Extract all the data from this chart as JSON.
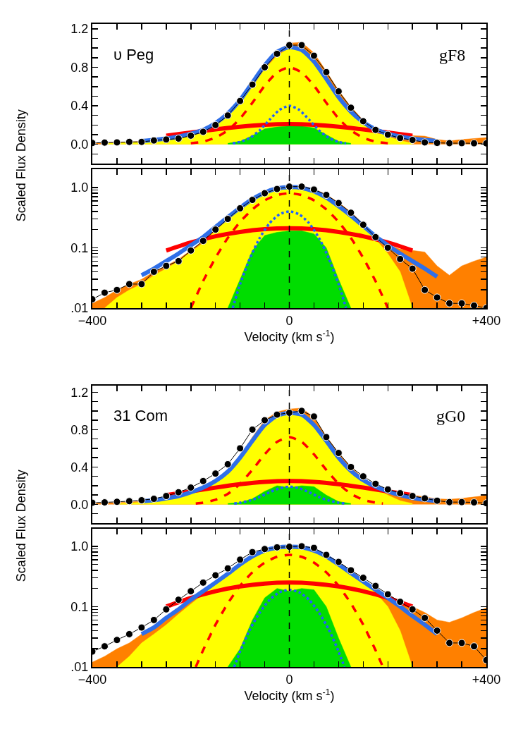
{
  "chart_data": [
    {
      "type": "line",
      "ylabel": "Scaled Flux Density",
      "annotations": [
        "υ Peg",
        "gF8"
      ],
      "tick_labels": "y",
      "xlim": [
        -400,
        400
      ],
      "xticks": [
        -400,
        {
          "value": -350,
          "label": null
        },
        {
          "value": -300,
          "label": null
        },
        {
          "value": -250,
          "label": null
        },
        {
          "value": -200,
          "label": null
        },
        {
          "value": -150,
          "label": null
        },
        {
          "value": -100,
          "label": null
        },
        {
          "value": -50,
          "label": null
        },
        0,
        {
          "value": 50,
          "label": null
        },
        {
          "value": 100,
          "label": null
        },
        {
          "value": 150,
          "label": null
        },
        {
          "value": 200,
          "label": null
        },
        {
          "value": 250,
          "label": null
        },
        {
          "value": 300,
          "label": null
        },
        {
          "value": 350,
          "label": null
        },
        400
      ],
      "ylim": [
        -0.2,
        1.25
      ],
      "yticks": [
        {
          "value": -0.2,
          "label": null
        },
        {
          "value": -0.1,
          "label": null
        },
        {
          "value": 0,
          "label": "0.0"
        },
        {
          "value": 0.1,
          "label": null
        },
        {
          "value": 0.2,
          "label": null
        },
        {
          "value": 0.3,
          "label": null
        },
        {
          "value": 0.4,
          "label": "0.4"
        },
        {
          "value": 0.5,
          "label": null
        },
        {
          "value": 0.6,
          "label": null
        },
        {
          "value": 0.7,
          "label": null
        },
        {
          "value": 0.8,
          "label": "0.8"
        },
        {
          "value": 0.9,
          "label": null
        },
        {
          "value": 1.0,
          "label": null
        },
        {
          "value": 1.1,
          "label": null
        },
        {
          "value": 1.2,
          "label": "1.2"
        }
      ],
      "ref_lines": [
        {
          "axis": "x",
          "value": 0,
          "color": "#000000",
          "line_style": "dashed"
        }
      ],
      "series": [
        {
          "type": "area",
          "color": "#ff8000",
          "x": [
            -400,
            -375,
            -350,
            -325,
            -300,
            -275,
            -250,
            -225,
            -200,
            -175,
            -150,
            -125,
            -100,
            -75,
            -50,
            -25,
            0,
            25,
            50,
            75,
            100,
            125,
            150,
            175,
            200,
            225,
            250,
            275,
            300,
            325,
            350,
            375,
            400
          ],
          "values": [
            0.012,
            0.015,
            0.02,
            0.025,
            0.03,
            0.04,
            0.05,
            0.065,
            0.09,
            0.13,
            0.2,
            0.31,
            0.46,
            0.64,
            0.83,
            0.97,
            1.05,
            1.06,
            0.95,
            0.76,
            0.56,
            0.39,
            0.25,
            0.16,
            0.11,
            0.095,
            0.09,
            0.085,
            0.05,
            0.035,
            0.05,
            0.06,
            0.07
          ]
        },
        {
          "type": "area",
          "color": "#ffff00",
          "x": [
            -375,
            -350,
            -325,
            -300,
            -275,
            -250,
            -225,
            -200,
            -175,
            -150,
            -125,
            -100,
            -75,
            -50,
            -25,
            0,
            25,
            50,
            75,
            100,
            125,
            150,
            175,
            200,
            225,
            250
          ],
          "values": [
            0.01,
            0.015,
            0.02,
            0.025,
            0.035,
            0.045,
            0.06,
            0.085,
            0.12,
            0.19,
            0.29,
            0.43,
            0.6,
            0.78,
            0.92,
            1.0,
            1.0,
            0.88,
            0.7,
            0.5,
            0.34,
            0.22,
            0.14,
            0.08,
            0.04,
            0.01
          ]
        },
        {
          "type": "area",
          "color": "#00dd00",
          "x": [
            -125,
            -100,
            -75,
            -50,
            -25,
            0,
            25,
            50,
            75,
            100,
            125
          ],
          "values": [
            0.01,
            0.03,
            0.09,
            0.16,
            0.18,
            0.19,
            0.19,
            0.17,
            0.1,
            0.03,
            0.01
          ]
        },
        {
          "type": "line",
          "color": "#ff0000",
          "x": [
            -250,
            -200,
            -150,
            -100,
            -50,
            0,
            50,
            100,
            150,
            200,
            250
          ],
          "values": [
            0.09,
            0.122,
            0.155,
            0.183,
            0.203,
            0.21,
            0.203,
            0.183,
            0.155,
            0.122,
            0.09
          ]
        },
        {
          "type": "line",
          "color": "#ff0000",
          "line_style": "dashed",
          "x": [
            -200,
            -175,
            -150,
            -125,
            -100,
            -75,
            -50,
            -25,
            0,
            25,
            50,
            75,
            100,
            125,
            150,
            175,
            200
          ],
          "values": [
            0.01,
            0.028,
            0.068,
            0.145,
            0.268,
            0.432,
            0.609,
            0.747,
            0.8,
            0.747,
            0.609,
            0.432,
            0.268,
            0.145,
            0.068,
            0.028,
            0.01
          ]
        },
        {
          "type": "line",
          "color": "#2060ff",
          "line_style": "dotted",
          "x": [
            -115,
            -100,
            -80,
            -60,
            -40,
            -20,
            0,
            20,
            40,
            60,
            80,
            100,
            115
          ],
          "values": [
            0.01,
            0.025,
            0.067,
            0.146,
            0.256,
            0.358,
            0.4,
            0.358,
            0.256,
            0.146,
            0.067,
            0.025,
            0.01
          ]
        },
        {
          "type": "line",
          "color": "#2f6fe8",
          "x": [
            -300,
            -275,
            -250,
            -225,
            -200,
            -175,
            -150,
            -125,
            -100,
            -75,
            -50,
            -25,
            0,
            25,
            50,
            75,
            100,
            125,
            150,
            175,
            200,
            225,
            250,
            275,
            300
          ],
          "values": [
            0.035,
            0.045,
            0.06,
            0.08,
            0.11,
            0.15,
            0.22,
            0.32,
            0.46,
            0.64,
            0.82,
            0.96,
            1.01,
            0.98,
            0.86,
            0.68,
            0.49,
            0.34,
            0.23,
            0.155,
            0.11,
            0.08,
            0.06,
            0.045,
            0.033
          ]
        },
        {
          "type": "line",
          "color": "#000000",
          "marker": "circle",
          "x": [
            -400,
            -375,
            -350,
            -325,
            -300,
            -275,
            -250,
            -225,
            -200,
            -175,
            -150,
            -125,
            -100,
            -75,
            -50,
            -25,
            0,
            25,
            50,
            75,
            100,
            125,
            150,
            175,
            200,
            225,
            250,
            275,
            300,
            325,
            350,
            375,
            400
          ],
          "values": [
            0.014,
            0.018,
            0.02,
            0.025,
            0.025,
            0.04,
            0.05,
            0.06,
            0.09,
            0.13,
            0.2,
            0.3,
            0.45,
            0.62,
            0.8,
            0.94,
            1.03,
            1.03,
            0.92,
            0.75,
            0.55,
            0.38,
            0.24,
            0.15,
            0.1,
            0.065,
            0.045,
            0.02,
            0.015,
            0.012,
            0.012,
            0.011,
            0.01
          ]
        }
      ]
    },
    {
      "type": "line",
      "xlabel": "Velocity (km s$^{-1}$)",
      "log": "y",
      "xlim": [
        -400,
        400
      ],
      "xticks": [
        {
          "value": -400,
          "label": "−400"
        },
        {
          "value": -350,
          "label": null
        },
        {
          "value": -300,
          "label": null
        },
        {
          "value": -250,
          "label": null
        },
        {
          "value": -200,
          "label": null
        },
        {
          "value": -150,
          "label": null
        },
        {
          "value": -100,
          "label": null
        },
        {
          "value": -50,
          "label": null
        },
        0,
        {
          "value": 50,
          "label": null
        },
        {
          "value": 100,
          "label": null
        },
        {
          "value": 150,
          "label": null
        },
        {
          "value": 200,
          "label": null
        },
        {
          "value": 250,
          "label": null
        },
        {
          "value": 300,
          "label": null
        },
        {
          "value": 350,
          "label": null
        },
        {
          "value": 400,
          "label": "+400"
        }
      ],
      "ylim": [
        0.01,
        2
      ],
      "yticks": [
        {
          "value": 0.01,
          "label": ".01"
        },
        {
          "value": 0.02,
          "label": null
        },
        {
          "value": 0.03,
          "label": null
        },
        {
          "value": 0.04,
          "label": null
        },
        {
          "value": 0.05,
          "label": null
        },
        {
          "value": 0.06,
          "label": null
        },
        {
          "value": 0.07,
          "label": null
        },
        {
          "value": 0.08,
          "label": null
        },
        {
          "value": 0.09,
          "label": null
        },
        {
          "value": 0.1,
          "label": "0.1"
        },
        {
          "value": 0.2,
          "label": null
        },
        {
          "value": 0.3,
          "label": null
        },
        {
          "value": 0.4,
          "label": null
        },
        {
          "value": 0.5,
          "label": null
        },
        {
          "value": 0.6,
          "label": null
        },
        {
          "value": 0.7,
          "label": null
        },
        {
          "value": 0.8,
          "label": null
        },
        {
          "value": 0.9,
          "label": null
        },
        {
          "value": 1.0,
          "label": "1.0"
        },
        {
          "value": 2,
          "label": null
        }
      ],
      "ref_lines": [
        {
          "axis": "x",
          "value": 0,
          "color": "#000000",
          "line_style": "dashed"
        }
      ],
      "series": [
        {
          "type": "area",
          "color": "#ff8000",
          "x": [
            -400,
            -375,
            -350,
            -325,
            -300,
            -275,
            -250,
            -225,
            -200,
            -175,
            -150,
            -125,
            -100,
            -75,
            -50,
            -25,
            0,
            25,
            50,
            75,
            100,
            125,
            150,
            175,
            200,
            225,
            250,
            275,
            300,
            325,
            350,
            375,
            400
          ],
          "values": [
            0.012,
            0.015,
            0.02,
            0.025,
            0.03,
            0.04,
            0.05,
            0.065,
            0.09,
            0.13,
            0.2,
            0.31,
            0.46,
            0.64,
            0.83,
            0.97,
            1.05,
            1.06,
            0.95,
            0.76,
            0.56,
            0.39,
            0.25,
            0.16,
            0.11,
            0.095,
            0.09,
            0.085,
            0.05,
            0.035,
            0.05,
            0.06,
            0.07
          ]
        },
        {
          "type": "area",
          "color": "#ffff00",
          "x": [
            -375,
            -350,
            -325,
            -300,
            -275,
            -250,
            -225,
            -200,
            -175,
            -150,
            -125,
            -100,
            -75,
            -50,
            -25,
            0,
            25,
            50,
            75,
            100,
            125,
            150,
            175,
            200,
            225,
            250
          ],
          "values": [
            0.01,
            0.015,
            0.02,
            0.025,
            0.035,
            0.045,
            0.06,
            0.085,
            0.12,
            0.19,
            0.29,
            0.43,
            0.6,
            0.78,
            0.92,
            1.0,
            1.0,
            0.88,
            0.7,
            0.5,
            0.34,
            0.22,
            0.14,
            0.08,
            0.04,
            0.01
          ]
        },
        {
          "type": "area",
          "color": "#00dd00",
          "x": [
            -125,
            -100,
            -75,
            -50,
            -25,
            0,
            25,
            50,
            75,
            100,
            125
          ],
          "values": [
            0.01,
            0.03,
            0.09,
            0.16,
            0.18,
            0.19,
            0.19,
            0.17,
            0.1,
            0.03,
            0.01
          ]
        },
        {
          "type": "line",
          "color": "#ff0000",
          "x": [
            -250,
            -200,
            -150,
            -100,
            -50,
            0,
            50,
            100,
            150,
            200,
            250
          ],
          "values": [
            0.09,
            0.122,
            0.155,
            0.183,
            0.203,
            0.21,
            0.203,
            0.183,
            0.155,
            0.122,
            0.09
          ]
        },
        {
          "type": "line",
          "color": "#ff0000",
          "line_style": "dashed",
          "x": [
            -200,
            -175,
            -150,
            -125,
            -100,
            -75,
            -50,
            -25,
            0,
            25,
            50,
            75,
            100,
            125,
            150,
            175,
            200
          ],
          "values": [
            0.01,
            0.028,
            0.068,
            0.145,
            0.268,
            0.432,
            0.609,
            0.747,
            0.8,
            0.747,
            0.609,
            0.432,
            0.268,
            0.145,
            0.068,
            0.028,
            0.01
          ]
        },
        {
          "type": "line",
          "color": "#2060ff",
          "line_style": "dotted",
          "x": [
            -115,
            -100,
            -80,
            -60,
            -40,
            -20,
            0,
            20,
            40,
            60,
            80,
            100,
            115
          ],
          "values": [
            0.01,
            0.025,
            0.067,
            0.146,
            0.256,
            0.358,
            0.4,
            0.358,
            0.256,
            0.146,
            0.067,
            0.025,
            0.01
          ]
        },
        {
          "type": "line",
          "color": "#2f6fe8",
          "x": [
            -300,
            -275,
            -250,
            -225,
            -200,
            -175,
            -150,
            -125,
            -100,
            -75,
            -50,
            -25,
            0,
            25,
            50,
            75,
            100,
            125,
            150,
            175,
            200,
            225,
            250,
            275,
            300
          ],
          "values": [
            0.035,
            0.045,
            0.06,
            0.08,
            0.11,
            0.15,
            0.22,
            0.32,
            0.46,
            0.64,
            0.82,
            0.96,
            1.01,
            0.98,
            0.86,
            0.68,
            0.49,
            0.34,
            0.23,
            0.155,
            0.11,
            0.08,
            0.06,
            0.045,
            0.033
          ]
        },
        {
          "type": "line",
          "color": "#000000",
          "marker": "circle",
          "x": [
            -400,
            -375,
            -350,
            -325,
            -300,
            -275,
            -250,
            -225,
            -200,
            -175,
            -150,
            -125,
            -100,
            -75,
            -50,
            -25,
            0,
            25,
            50,
            75,
            100,
            125,
            150,
            175,
            200,
            225,
            250,
            275,
            300,
            325,
            350,
            375,
            400
          ],
          "values": [
            0.014,
            0.018,
            0.02,
            0.025,
            0.025,
            0.04,
            0.05,
            0.06,
            0.09,
            0.13,
            0.2,
            0.3,
            0.45,
            0.62,
            0.8,
            0.94,
            1.03,
            1.03,
            0.92,
            0.75,
            0.55,
            0.38,
            0.24,
            0.15,
            0.1,
            0.065,
            0.045,
            0.02,
            0.015,
            0.012,
            0.012,
            0.011,
            0.01
          ]
        }
      ]
    },
    {
      "type": "line",
      "ylabel": "Scaled Flux Density",
      "annotations": [
        "31 Com",
        "gG0"
      ],
      "tick_labels": "y",
      "xlim": [
        -400,
        400
      ],
      "xticks": [
        -400,
        {
          "value": -350,
          "label": null
        },
        {
          "value": -300,
          "label": null
        },
        {
          "value": -250,
          "label": null
        },
        {
          "value": -200,
          "label": null
        },
        {
          "value": -150,
          "label": null
        },
        {
          "value": -100,
          "label": null
        },
        {
          "value": -50,
          "label": null
        },
        0,
        {
          "value": 50,
          "label": null
        },
        {
          "value": 100,
          "label": null
        },
        {
          "value": 150,
          "label": null
        },
        {
          "value": 200,
          "label": null
        },
        {
          "value": 250,
          "label": null
        },
        {
          "value": 300,
          "label": null
        },
        {
          "value": 350,
          "label": null
        },
        400
      ],
      "ylim": [
        -0.2,
        1.27
      ],
      "yticks": [
        {
          "value": -0.2,
          "label": null
        },
        {
          "value": -0.1,
          "label": null
        },
        {
          "value": 0,
          "label": "0.0"
        },
        {
          "value": 0.1,
          "label": null
        },
        {
          "value": 0.2,
          "label": null
        },
        {
          "value": 0.3,
          "label": null
        },
        {
          "value": 0.4,
          "label": "0.4"
        },
        {
          "value": 0.5,
          "label": null
        },
        {
          "value": 0.6,
          "label": null
        },
        {
          "value": 0.7,
          "label": null
        },
        {
          "value": 0.8,
          "label": "0.8"
        },
        {
          "value": 0.9,
          "label": null
        },
        {
          "value": 1.0,
          "label": null
        },
        {
          "value": 1.1,
          "label": null
        },
        {
          "value": 1.2,
          "label": "1.2"
        }
      ],
      "ref_lines": [
        {
          "axis": "x",
          "value": 0,
          "color": "#000000",
          "line_style": "dashed"
        }
      ],
      "series": [
        {
          "type": "area",
          "color": "#ff8000",
          "x": [
            -400,
            -375,
            -350,
            -325,
            -300,
            -275,
            -250,
            -225,
            -200,
            -175,
            -150,
            -125,
            -100,
            -75,
            -50,
            -25,
            0,
            25,
            50,
            75,
            100,
            125,
            150,
            175,
            200,
            225,
            250,
            275,
            300,
            325,
            350,
            375,
            400
          ],
          "values": [
            0.012,
            0.015,
            0.02,
            0.025,
            0.035,
            0.045,
            0.065,
            0.09,
            0.13,
            0.18,
            0.25,
            0.35,
            0.52,
            0.72,
            0.9,
            0.99,
            1.02,
            1.03,
            0.93,
            0.73,
            0.55,
            0.4,
            0.28,
            0.2,
            0.14,
            0.11,
            0.1,
            0.08,
            0.06,
            0.055,
            0.065,
            0.08,
            0.095
          ]
        },
        {
          "type": "area",
          "color": "#ffff00",
          "x": [
            -350,
            -325,
            -300,
            -275,
            -250,
            -225,
            -200,
            -175,
            -150,
            -125,
            -100,
            -75,
            -50,
            -25,
            0,
            25,
            50,
            75,
            100,
            125,
            150,
            175,
            200,
            225,
            250
          ],
          "values": [
            0.01,
            0.015,
            0.025,
            0.035,
            0.05,
            0.075,
            0.11,
            0.16,
            0.23,
            0.33,
            0.48,
            0.66,
            0.83,
            0.94,
            0.97,
            0.95,
            0.84,
            0.67,
            0.49,
            0.35,
            0.25,
            0.17,
            0.1,
            0.04,
            0.01
          ]
        },
        {
          "type": "area",
          "color": "#00dd00",
          "x": [
            -125,
            -100,
            -75,
            -50,
            -25,
            0,
            25,
            50,
            75,
            100,
            125
          ],
          "values": [
            0.01,
            0.02,
            0.06,
            0.14,
            0.2,
            0.18,
            0.2,
            0.19,
            0.1,
            0.03,
            0.01
          ]
        },
        {
          "type": "line",
          "color": "#ff0000",
          "x": [
            -250,
            -200,
            -150,
            -100,
            -50,
            0,
            50,
            100,
            150,
            200,
            250
          ],
          "values": [
            0.1,
            0.139,
            0.18,
            0.216,
            0.241,
            0.25,
            0.241,
            0.216,
            0.18,
            0.139,
            0.1
          ]
        },
        {
          "type": "line",
          "color": "#ff0000",
          "line_style": "dashed",
          "x": [
            -190,
            -175,
            -150,
            -125,
            -100,
            -75,
            -50,
            -25,
            0,
            25,
            50,
            75,
            100,
            125,
            150,
            175,
            190
          ],
          "values": [
            0.01,
            0.019,
            0.05,
            0.113,
            0.221,
            0.37,
            0.536,
            0.669,
            0.72,
            0.669,
            0.536,
            0.37,
            0.221,
            0.113,
            0.05,
            0.019,
            0.01
          ]
        },
        {
          "type": "line",
          "color": "#2060ff",
          "line_style": "dotted",
          "x": [
            -112,
            -100,
            -80,
            -60,
            -40,
            -20,
            0,
            20,
            40,
            60,
            80,
            100,
            112
          ],
          "values": [
            0.01,
            0.018,
            0.042,
            0.08,
            0.13,
            0.173,
            0.19,
            0.173,
            0.13,
            0.08,
            0.042,
            0.018,
            0.01
          ]
        },
        {
          "type": "line",
          "color": "#2f6fe8",
          "x": [
            -300,
            -275,
            -250,
            -225,
            -200,
            -175,
            -150,
            -125,
            -100,
            -75,
            -50,
            -25,
            0,
            25,
            50,
            75,
            100,
            125,
            150,
            175,
            200,
            225,
            250,
            275,
            300
          ],
          "values": [
            0.035,
            0.045,
            0.065,
            0.09,
            0.13,
            0.18,
            0.25,
            0.35,
            0.5,
            0.68,
            0.85,
            0.95,
            0.98,
            0.96,
            0.85,
            0.68,
            0.5,
            0.36,
            0.26,
            0.19,
            0.14,
            0.1,
            0.07,
            0.05,
            0.035
          ]
        },
        {
          "type": "line",
          "color": "#000000",
          "marker": "circle",
          "x": [
            -400,
            -375,
            -350,
            -325,
            -300,
            -275,
            -250,
            -225,
            -200,
            -175,
            -150,
            -125,
            -100,
            -75,
            -50,
            -25,
            0,
            25,
            50,
            75,
            100,
            125,
            150,
            175,
            200,
            225,
            250,
            275,
            300,
            325,
            350,
            375,
            400
          ],
          "values": [
            0.018,
            0.022,
            0.028,
            0.035,
            0.045,
            0.06,
            0.09,
            0.13,
            0.18,
            0.25,
            0.33,
            0.43,
            0.6,
            0.8,
            0.9,
            0.96,
            0.98,
            1.0,
            0.94,
            0.72,
            0.55,
            0.4,
            0.3,
            0.22,
            0.16,
            0.12,
            0.09,
            0.065,
            0.04,
            0.025,
            0.025,
            0.022,
            0.013
          ]
        }
      ]
    },
    {
      "type": "line",
      "xlabel": "Velocity (km s$^{-1}$)",
      "log": "y",
      "xlim": [
        -400,
        400
      ],
      "xticks": [
        {
          "value": -400,
          "label": "−400"
        },
        {
          "value": -350,
          "label": null
        },
        {
          "value": -300,
          "label": null
        },
        {
          "value": -250,
          "label": null
        },
        {
          "value": -200,
          "label": null
        },
        {
          "value": -150,
          "label": null
        },
        {
          "value": -100,
          "label": null
        },
        {
          "value": -50,
          "label": null
        },
        0,
        {
          "value": 50,
          "label": null
        },
        {
          "value": 100,
          "label": null
        },
        {
          "value": 150,
          "label": null
        },
        {
          "value": 200,
          "label": null
        },
        {
          "value": 250,
          "label": null
        },
        {
          "value": 300,
          "label": null
        },
        {
          "value": 350,
          "label": null
        },
        {
          "value": 400,
          "label": "+400"
        }
      ],
      "ylim": [
        0.01,
        1.95
      ],
      "yticks": [
        {
          "value": 0.01,
          "label": ".01"
        },
        {
          "value": 0.02,
          "label": null
        },
        {
          "value": 0.03,
          "label": null
        },
        {
          "value": 0.04,
          "label": null
        },
        {
          "value": 0.05,
          "label": null
        },
        {
          "value": 0.06,
          "label": null
        },
        {
          "value": 0.07,
          "label": null
        },
        {
          "value": 0.08,
          "label": null
        },
        {
          "value": 0.09,
          "label": null
        },
        {
          "value": 0.1,
          "label": "0.1"
        },
        {
          "value": 0.2,
          "label": null
        },
        {
          "value": 0.3,
          "label": null
        },
        {
          "value": 0.4,
          "label": null
        },
        {
          "value": 0.5,
          "label": null
        },
        {
          "value": 0.6,
          "label": null
        },
        {
          "value": 0.7,
          "label": null
        },
        {
          "value": 0.8,
          "label": null
        },
        {
          "value": 0.9,
          "label": null
        },
        {
          "value": 1.0,
          "label": "1.0"
        }
      ],
      "ref_lines": [
        {
          "axis": "x",
          "value": 0,
          "color": "#000000",
          "line_style": "dashed"
        }
      ],
      "series": [
        {
          "type": "area",
          "color": "#ff8000",
          "x": [
            -400,
            -375,
            -350,
            -325,
            -300,
            -275,
            -250,
            -225,
            -200,
            -175,
            -150,
            -125,
            -100,
            -75,
            -50,
            -25,
            0,
            25,
            50,
            75,
            100,
            125,
            150,
            175,
            200,
            225,
            250,
            275,
            300,
            325,
            350,
            375,
            400
          ],
          "values": [
            0.012,
            0.015,
            0.02,
            0.025,
            0.035,
            0.045,
            0.065,
            0.09,
            0.13,
            0.18,
            0.25,
            0.35,
            0.52,
            0.72,
            0.9,
            0.99,
            1.02,
            1.03,
            0.93,
            0.73,
            0.55,
            0.4,
            0.28,
            0.2,
            0.14,
            0.11,
            0.1,
            0.08,
            0.06,
            0.055,
            0.065,
            0.08,
            0.095
          ]
        },
        {
          "type": "area",
          "color": "#ffff00",
          "x": [
            -350,
            -325,
            -300,
            -275,
            -250,
            -225,
            -200,
            -175,
            -150,
            -125,
            -100,
            -75,
            -50,
            -25,
            0,
            25,
            50,
            75,
            100,
            125,
            150,
            175,
            200,
            225,
            250
          ],
          "values": [
            0.01,
            0.015,
            0.025,
            0.035,
            0.05,
            0.075,
            0.11,
            0.16,
            0.23,
            0.33,
            0.48,
            0.66,
            0.83,
            0.94,
            0.97,
            0.95,
            0.84,
            0.67,
            0.49,
            0.35,
            0.25,
            0.17,
            0.1,
            0.04,
            0.01
          ]
        },
        {
          "type": "area",
          "color": "#00dd00",
          "x": [
            -125,
            -100,
            -75,
            -50,
            -25,
            0,
            25,
            50,
            75,
            100,
            125
          ],
          "values": [
            0.01,
            0.02,
            0.06,
            0.14,
            0.2,
            0.18,
            0.2,
            0.19,
            0.1,
            0.03,
            0.01
          ]
        },
        {
          "type": "line",
          "color": "#ff0000",
          "x": [
            -250,
            -200,
            -150,
            -100,
            -50,
            0,
            50,
            100,
            150,
            200,
            250
          ],
          "values": [
            0.1,
            0.139,
            0.18,
            0.216,
            0.241,
            0.25,
            0.241,
            0.216,
            0.18,
            0.139,
            0.1
          ]
        },
        {
          "type": "line",
          "color": "#ff0000",
          "line_style": "dashed",
          "x": [
            -190,
            -175,
            -150,
            -125,
            -100,
            -75,
            -50,
            -25,
            0,
            25,
            50,
            75,
            100,
            125,
            150,
            175,
            190
          ],
          "values": [
            0.01,
            0.019,
            0.05,
            0.113,
            0.221,
            0.37,
            0.536,
            0.669,
            0.72,
            0.669,
            0.536,
            0.37,
            0.221,
            0.113,
            0.05,
            0.019,
            0.01
          ]
        },
        {
          "type": "line",
          "color": "#2060ff",
          "line_style": "dotted",
          "x": [
            -112,
            -100,
            -80,
            -60,
            -40,
            -20,
            0,
            20,
            40,
            60,
            80,
            100,
            112
          ],
          "values": [
            0.01,
            0.018,
            0.042,
            0.08,
            0.13,
            0.173,
            0.19,
            0.173,
            0.13,
            0.08,
            0.042,
            0.018,
            0.01
          ]
        },
        {
          "type": "line",
          "color": "#2f6fe8",
          "x": [
            -300,
            -275,
            -250,
            -225,
            -200,
            -175,
            -150,
            -125,
            -100,
            -75,
            -50,
            -25,
            0,
            25,
            50,
            75,
            100,
            125,
            150,
            175,
            200,
            225,
            250,
            275,
            300
          ],
          "values": [
            0.035,
            0.045,
            0.065,
            0.09,
            0.13,
            0.18,
            0.25,
            0.35,
            0.5,
            0.68,
            0.85,
            0.95,
            0.98,
            0.96,
            0.85,
            0.68,
            0.5,
            0.36,
            0.26,
            0.19,
            0.14,
            0.1,
            0.07,
            0.05,
            0.035
          ]
        },
        {
          "type": "line",
          "color": "#000000",
          "marker": "circle",
          "x": [
            -400,
            -375,
            -350,
            -325,
            -300,
            -275,
            -250,
            -225,
            -200,
            -175,
            -150,
            -125,
            -100,
            -75,
            -50,
            -25,
            0,
            25,
            50,
            75,
            100,
            125,
            150,
            175,
            200,
            225,
            250,
            275,
            300,
            325,
            350,
            375,
            400
          ],
          "values": [
            0.018,
            0.022,
            0.028,
            0.035,
            0.045,
            0.06,
            0.09,
            0.13,
            0.18,
            0.25,
            0.33,
            0.43,
            0.6,
            0.8,
            0.9,
            0.96,
            0.98,
            1.0,
            0.94,
            0.72,
            0.55,
            0.4,
            0.3,
            0.22,
            0.16,
            0.12,
            0.09,
            0.065,
            0.04,
            0.025,
            0.025,
            0.022,
            0.013
          ]
        }
      ]
    }
  ]
}
